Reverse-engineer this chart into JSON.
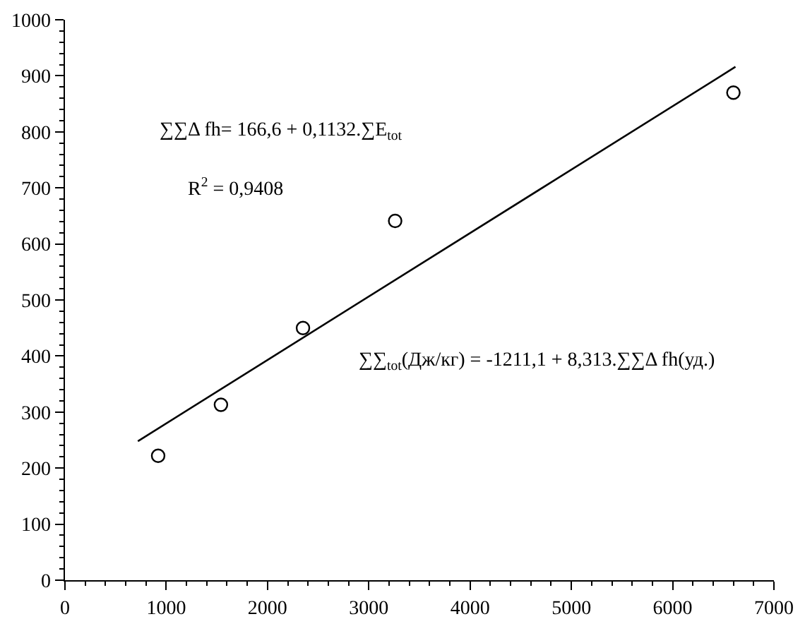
{
  "chart_data": {
    "type": "scatter",
    "marker": "circle",
    "series": [
      {
        "color": "#000000",
        "x": [
          920,
          1540,
          2350,
          3260,
          6600
        ],
        "values": [
          222,
          313,
          450,
          641,
          870
        ]
      },
      {
        "type": "line",
        "color": "#000000",
        "marker": "none",
        "x": [
          720,
          6620
        ],
        "values": [
          248,
          916
        ]
      }
    ],
    "xlim": [
      0,
      7000
    ],
    "xticks": [
      0,
      1000,
      2000,
      3000,
      4000,
      5000,
      6000,
      7000
    ],
    "ylim": [
      0,
      1000
    ],
    "yticks": [
      0,
      100,
      200,
      300,
      400,
      500,
      600,
      700,
      800,
      900,
      1000
    ],
    "annotations": [
      "∑∑Δ fh= 166,6 + 0,1132.∑E$_{tot}$",
      "R$^{2}$ = 0,9408",
      "∑∑$_{tot}$(Дж/кг) = -1211,1 + 8,313.∑∑Δ fh(уд.)"
    ]
  }
}
